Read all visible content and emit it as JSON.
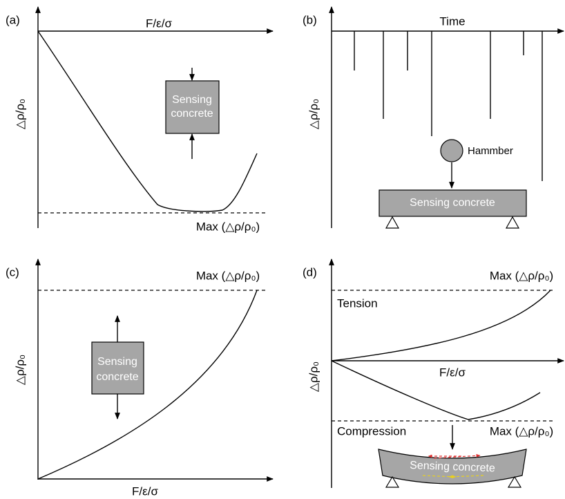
{
  "panels": [
    {
      "label": "(a)",
      "x_label": "F/ε/σ",
      "y_label": "△ρ/ρ₀",
      "max_label": "Max (△ρ/ρ₀)",
      "specimen": [
        "Sensing",
        "concrete"
      ]
    },
    {
      "label": "(b)",
      "x_label": "Time",
      "y_label": "△ρ/ρ₀",
      "hammer_label": "Hammber",
      "specimen": "Sensing concrete"
    },
    {
      "label": "(c)",
      "x_label": "F/ε/σ",
      "y_label": "△ρ/ρ₀",
      "max_label": "Max (△ρ/ρ₀)",
      "specimen": [
        "Sensing",
        "concrete"
      ]
    },
    {
      "label": "(d)",
      "x_label": "F/ε/σ",
      "y_label": "△ρ/ρ₀",
      "tension_label": "Tension",
      "compression_label": "Compression",
      "max_top_label": "Max (△ρ/ρ₀)",
      "max_bottom_label": "Max (△ρ/ρ₀)",
      "specimen": "Sensing concrete"
    }
  ]
}
